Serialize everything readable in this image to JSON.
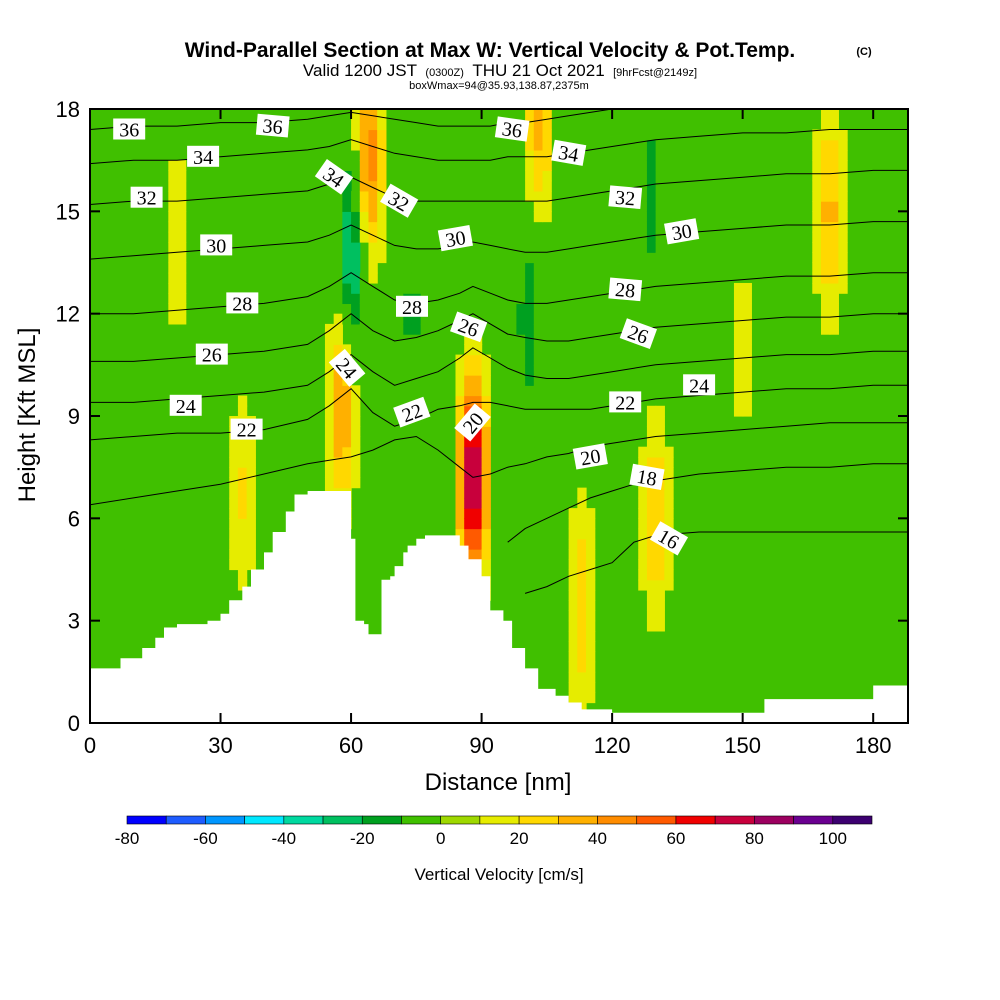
{
  "header": {
    "title": "Wind-Parallel Section at Max W: Vertical Velocity & Pot.Temp.",
    "title_mark": "(C)",
    "valid_prefix": "Valid 1200 JST",
    "valid_utc": "(0300Z)",
    "valid_date": "THU 21 Oct 2021",
    "forecast": "[9hrFcst@2149z]",
    "box_info": "boxWmax=94@35.93,138.87,2375m"
  },
  "chart_data": {
    "type": "heatmap",
    "xlabel": "Distance [nm]",
    "ylabel": "Height [Kft MSL]",
    "xlim": [
      0,
      188
    ],
    "ylim": [
      0,
      18
    ],
    "x_ticks": [
      0,
      30,
      60,
      90,
      120,
      150,
      180
    ],
    "y_ticks": [
      0,
      3,
      6,
      9,
      12,
      15,
      18
    ],
    "x_tick_labels": [
      "0",
      "30",
      "60",
      "90",
      "120",
      "150",
      "180"
    ],
    "y_tick_labels": [
      "0",
      "3",
      "6",
      "9",
      "12",
      "15",
      "18"
    ],
    "colorbar": {
      "title": "Vertical Velocity [cm/s]",
      "bounds": [
        -80,
        110
      ],
      "step": 10,
      "tick_values": [
        -80,
        -60,
        -40,
        -20,
        0,
        20,
        40,
        60,
        80,
        100
      ],
      "tick_labels": [
        "-80",
        "-60",
        "-40",
        "-20",
        "0",
        "20",
        "40",
        "60",
        "80",
        "100"
      ],
      "colors": [
        "#0000ff",
        "#1e5cff",
        "#0096ff",
        "#00e8ff",
        "#00d9a0",
        "#00c060",
        "#00a020",
        "#40c000",
        "#9ed800",
        "#e6ec00",
        "#ffd800",
        "#ffb000",
        "#ff8c00",
        "#ff5a00",
        "#f00000",
        "#c8003c",
        "#9c0060",
        "#6a0090",
        "#3c0070"
      ]
    },
    "w_features": [
      {
        "x": 60,
        "z": 13.5,
        "w": -40
      },
      {
        "x": 58,
        "z": 9.5,
        "w": 40
      },
      {
        "x": 64,
        "z": 16.5,
        "w": 45
      },
      {
        "x": 88,
        "z": 7.2,
        "w": 80
      },
      {
        "x": 74,
        "z": 12,
        "w": -15
      },
      {
        "x": 101,
        "z": 12,
        "w": -20
      },
      {
        "x": 103,
        "z": 17.5,
        "w": 30
      },
      {
        "x": 113,
        "z": 3.5,
        "w": 25
      },
      {
        "x": 130,
        "z": 6,
        "w": 28
      },
      {
        "x": 129,
        "z": 15.5,
        "w": -18
      },
      {
        "x": 170,
        "z": 15,
        "w": 30
      },
      {
        "x": 20,
        "z": 14,
        "w": 15
      },
      {
        "x": 35,
        "z": 6.8,
        "w": 18
      },
      {
        "x": 10,
        "z": 4,
        "w": -8
      },
      {
        "x": 145,
        "z": 3,
        "w": -12
      },
      {
        "x": 150,
        "z": 11,
        "w": 12
      }
    ],
    "terrain": {
      "x": [
        0,
        5,
        7,
        10,
        12,
        15,
        17,
        20,
        22,
        25,
        27,
        30,
        32,
        35,
        37,
        40,
        42,
        45,
        47,
        50,
        52,
        55,
        57,
        60,
        61,
        63,
        64,
        66,
        67,
        69,
        70,
        72,
        73,
        75,
        77,
        80,
        83,
        85,
        87,
        90,
        92,
        95,
        97,
        100,
        103,
        107,
        110,
        113,
        120,
        130,
        140,
        150,
        155,
        160,
        165,
        170,
        175,
        180,
        188
      ],
      "height_kft": [
        1.6,
        1.6,
        1.9,
        1.9,
        2.2,
        2.5,
        2.8,
        2.9,
        2.9,
        2.9,
        3.0,
        3.2,
        3.6,
        4.0,
        4.5,
        5.0,
        5.6,
        6.2,
        6.7,
        6.8,
        6.8,
        6.8,
        6.8,
        5.4,
        3.0,
        2.9,
        2.6,
        2.6,
        4.2,
        4.3,
        4.6,
        5.0,
        5.2,
        5.4,
        5.5,
        5.5,
        5.5,
        5.2,
        4.8,
        4.3,
        3.3,
        3.0,
        2.2,
        1.6,
        1.0,
        0.8,
        0.6,
        0.4,
        0.3,
        0.3,
        0.3,
        0.3,
        0.7,
        0.7,
        0.7,
        0.7,
        0.7,
        1.1,
        1.1
      ]
    },
    "theta_contours": {
      "x": [
        0,
        10,
        20,
        30,
        40,
        50,
        55,
        60,
        65,
        70,
        75,
        80,
        85,
        88,
        92,
        96,
        100,
        105,
        110,
        115,
        120,
        125,
        130,
        140,
        150,
        160,
        170,
        180,
        188
      ],
      "lines": [
        {
          "label": "16",
          "z": [
            null,
            null,
            null,
            null,
            null,
            null,
            null,
            null,
            null,
            null,
            null,
            null,
            null,
            null,
            null,
            null,
            3.8,
            4.0,
            4.3,
            4.5,
            4.7,
            5.3,
            5.5,
            5.6,
            5.6,
            5.6,
            5.6,
            5.6,
            5.6
          ]
        },
        {
          "label": "18",
          "z": [
            null,
            null,
            null,
            null,
            null,
            null,
            null,
            null,
            null,
            null,
            null,
            null,
            null,
            null,
            null,
            5.3,
            5.7,
            6.0,
            6.3,
            6.6,
            6.8,
            7.0,
            7.1,
            7.3,
            7.4,
            7.5,
            7.5,
            7.6,
            7.6
          ]
        },
        {
          "label": "20",
          "z": [
            6.4,
            6.6,
            6.8,
            7.0,
            7.3,
            7.6,
            7.7,
            7.8,
            8.0,
            8.3,
            8.4,
            8.0,
            7.5,
            7.2,
            7.3,
            7.5,
            7.6,
            7.8,
            7.9,
            8.1,
            8.2,
            8.3,
            8.4,
            8.5,
            8.6,
            8.7,
            8.8,
            8.8,
            8.8
          ]
        },
        {
          "label": "22",
          "z": [
            8.3,
            8.4,
            8.5,
            8.5,
            8.6,
            8.9,
            9.3,
            9.8,
            9.1,
            8.7,
            8.9,
            9.2,
            9.3,
            9.4,
            9.4,
            9.3,
            9.2,
            9.2,
            9.2,
            9.2,
            9.3,
            9.4,
            9.5,
            9.6,
            9.7,
            9.8,
            9.8,
            9.9,
            9.9
          ]
        },
        {
          "label": "24",
          "z": [
            9.4,
            9.4,
            9.5,
            9.6,
            9.7,
            9.9,
            10.3,
            10.8,
            10.3,
            9.9,
            10.1,
            10.3,
            10.7,
            11.0,
            10.7,
            10.4,
            10.2,
            10.1,
            10.1,
            10.2,
            10.3,
            10.4,
            10.5,
            10.6,
            10.7,
            10.8,
            10.8,
            10.9,
            10.9
          ]
        },
        {
          "label": "26",
          "z": [
            10.6,
            10.6,
            10.7,
            10.8,
            10.9,
            11.1,
            11.5,
            12.0,
            11.5,
            11.2,
            11.3,
            11.5,
            11.8,
            12.0,
            11.7,
            11.4,
            11.3,
            11.2,
            11.2,
            11.3,
            11.4,
            11.5,
            11.6,
            11.7,
            11.8,
            11.9,
            11.9,
            12.0,
            12.0
          ]
        },
        {
          "label": "28",
          "z": [
            12.0,
            12.0,
            12.1,
            12.2,
            12.3,
            12.5,
            12.8,
            13.2,
            12.8,
            12.4,
            12.3,
            12.4,
            12.6,
            12.8,
            12.6,
            12.4,
            12.3,
            12.3,
            12.4,
            12.5,
            12.6,
            12.7,
            12.8,
            12.9,
            13.0,
            13.1,
            13.1,
            13.2,
            13.2
          ]
        },
        {
          "label": "30",
          "z": [
            13.6,
            13.7,
            13.8,
            13.9,
            14.0,
            14.1,
            14.3,
            14.6,
            14.3,
            14.0,
            13.9,
            13.9,
            14.0,
            14.1,
            14.0,
            13.9,
            13.8,
            13.8,
            13.9,
            14.0,
            14.1,
            14.2,
            14.3,
            14.4,
            14.5,
            14.6,
            14.6,
            14.7,
            14.7
          ]
        },
        {
          "label": "32",
          "z": [
            15.2,
            15.3,
            15.3,
            15.4,
            15.5,
            15.6,
            15.8,
            16.0,
            15.7,
            15.4,
            15.3,
            15.3,
            15.3,
            15.3,
            15.3,
            15.3,
            15.3,
            15.3,
            15.4,
            15.5,
            15.6,
            15.7,
            15.8,
            15.9,
            16.0,
            16.1,
            16.1,
            16.2,
            16.2
          ]
        },
        {
          "label": "34",
          "z": [
            16.4,
            16.5,
            16.5,
            16.6,
            16.7,
            16.8,
            16.9,
            17.1,
            16.9,
            16.7,
            16.6,
            16.5,
            16.5,
            16.5,
            16.5,
            16.6,
            16.6,
            16.6,
            16.7,
            16.8,
            16.9,
            17.0,
            17.1,
            17.2,
            17.3,
            17.3,
            17.4,
            17.4,
            17.4
          ]
        },
        {
          "label": "36",
          "z": [
            17.4,
            17.5,
            17.5,
            17.6,
            17.6,
            17.7,
            17.8,
            17.9,
            17.8,
            17.7,
            17.6,
            17.5,
            17.5,
            17.5,
            17.5,
            17.6,
            17.6,
            17.7,
            17.8,
            17.9,
            18.0,
            null,
            null,
            null,
            null,
            null,
            null,
            null,
            null
          ]
        }
      ]
    },
    "contour_labels": [
      {
        "text": "36",
        "x": 9,
        "z": 17.4,
        "angle": 0
      },
      {
        "text": "36",
        "x": 42,
        "z": 17.5,
        "angle": 5
      },
      {
        "text": "36",
        "x": 97,
        "z": 17.4,
        "angle": 8
      },
      {
        "text": "34",
        "x": 26,
        "z": 16.6,
        "angle": 0
      },
      {
        "text": "34",
        "x": 56,
        "z": 16.0,
        "angle": 35
      },
      {
        "text": "34",
        "x": 110,
        "z": 16.7,
        "angle": 10
      },
      {
        "text": "32",
        "x": 13,
        "z": 15.4,
        "angle": 0
      },
      {
        "text": "32",
        "x": 71,
        "z": 15.3,
        "angle": 30
      },
      {
        "text": "32",
        "x": 123,
        "z": 15.4,
        "angle": 5
      },
      {
        "text": "30",
        "x": 29,
        "z": 14.0,
        "angle": 0
      },
      {
        "text": "30",
        "x": 84,
        "z": 14.2,
        "angle": -10
      },
      {
        "text": "30",
        "x": 136,
        "z": 14.4,
        "angle": -10
      },
      {
        "text": "28",
        "x": 35,
        "z": 12.3,
        "angle": 0
      },
      {
        "text": "28",
        "x": 74,
        "z": 12.2,
        "angle": 0
      },
      {
        "text": "28",
        "x": 123,
        "z": 12.7,
        "angle": 5
      },
      {
        "text": "26",
        "x": 28,
        "z": 10.8,
        "angle": 0
      },
      {
        "text": "26",
        "x": 87,
        "z": 11.6,
        "angle": 20
      },
      {
        "text": "26",
        "x": 126,
        "z": 11.4,
        "angle": 20
      },
      {
        "text": "24",
        "x": 22,
        "z": 9.3,
        "angle": 0
      },
      {
        "text": "24",
        "x": 59,
        "z": 10.4,
        "angle": 50
      },
      {
        "text": "24",
        "x": 140,
        "z": 9.9,
        "angle": 0
      },
      {
        "text": "22",
        "x": 36,
        "z": 8.6,
        "angle": 0
      },
      {
        "text": "22",
        "x": 74,
        "z": 9.1,
        "angle": -20
      },
      {
        "text": "22",
        "x": 123,
        "z": 9.4,
        "angle": 0
      },
      {
        "text": "20",
        "x": 88,
        "z": 8.8,
        "angle": -50
      },
      {
        "text": "20",
        "x": 115,
        "z": 7.8,
        "angle": -10
      },
      {
        "text": "18",
        "x": 128,
        "z": 7.2,
        "angle": 10
      },
      {
        "text": "16",
        "x": 133,
        "z": 5.4,
        "angle": 30
      }
    ]
  }
}
